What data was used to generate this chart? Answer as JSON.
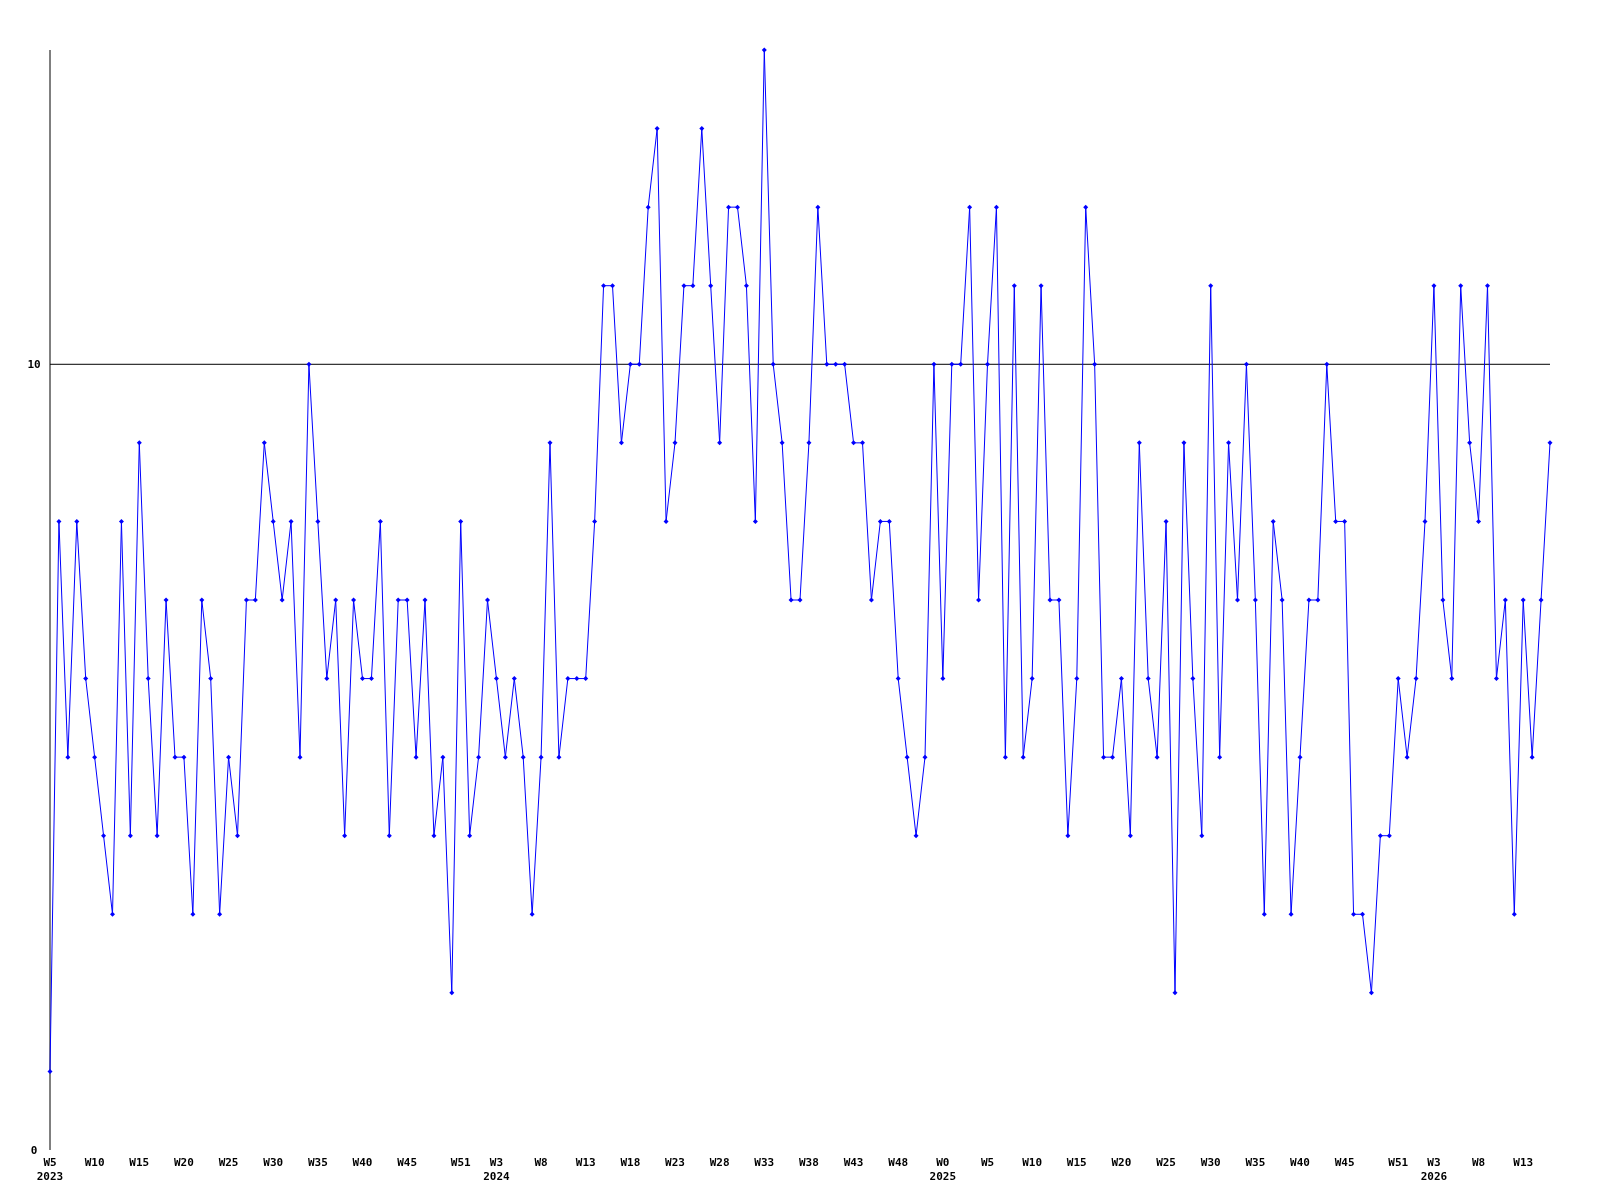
{
  "chart_data": {
    "type": "line",
    "categories": [
      "W5\n2023",
      null,
      null,
      null,
      null,
      "W10",
      null,
      null,
      null,
      null,
      "W15",
      null,
      null,
      null,
      null,
      "W20",
      null,
      null,
      null,
      null,
      "W25",
      null,
      null,
      null,
      null,
      "W30",
      null,
      null,
      null,
      null,
      "W35",
      null,
      null,
      null,
      null,
      "W40",
      null,
      null,
      null,
      null,
      "W45",
      null,
      null,
      null,
      null,
      null,
      "W51",
      null,
      null,
      null,
      "W3\n2024",
      null,
      null,
      null,
      null,
      "W8",
      null,
      null,
      null,
      null,
      "W13",
      null,
      null,
      null,
      null,
      "W18",
      null,
      null,
      null,
      null,
      "W23",
      null,
      null,
      null,
      null,
      "W28",
      null,
      null,
      null,
      null,
      "W33",
      null,
      null,
      null,
      null,
      "W38",
      null,
      null,
      null,
      null,
      "W43",
      null,
      null,
      null,
      null,
      "W48",
      null,
      null,
      null,
      null,
      "W0\n2025",
      null,
      null,
      null,
      null,
      "W5",
      null,
      null,
      null,
      null,
      "W10",
      null,
      null,
      null,
      null,
      "W15",
      null,
      null,
      null,
      null,
      "W20",
      null,
      null,
      null,
      null,
      "W25",
      null,
      null,
      null,
      null,
      "W30",
      null,
      null,
      null,
      null,
      "W35",
      null,
      null,
      null,
      null,
      "W40",
      null,
      null,
      null,
      null,
      "W45",
      null,
      null,
      null,
      null,
      null,
      "W51",
      null,
      null,
      null,
      "W3\n2026",
      null,
      null,
      null,
      null,
      "W8",
      null,
      null,
      null,
      null,
      "W13",
      null,
      null,
      null
    ],
    "series": [
      {
        "color": "#0000ff",
        "values": [
          1,
          8,
          5,
          8,
          6,
          5,
          4,
          3,
          8,
          4,
          9,
          6,
          4,
          7,
          5,
          5,
          3,
          7,
          6,
          3,
          5,
          4,
          7,
          7,
          9,
          8,
          7,
          8,
          5,
          10,
          8,
          6,
          7,
          4,
          7,
          6,
          6,
          8,
          4,
          7,
          7,
          5,
          7,
          4,
          5,
          2,
          8,
          4,
          5,
          7,
          6,
          5,
          6,
          5,
          3,
          5,
          9,
          5,
          6,
          6,
          6,
          8,
          11,
          11,
          9,
          10,
          10,
          12,
          13,
          8,
          9,
          11,
          11,
          13,
          11,
          9,
          12,
          12,
          11,
          8,
          14,
          10,
          9,
          7,
          7,
          9,
          12,
          10,
          10,
          10,
          9,
          9,
          7,
          8,
          8,
          6,
          5,
          4,
          5,
          10,
          6,
          10,
          10,
          12,
          7,
          10,
          12,
          5,
          11,
          5,
          6,
          11,
          7,
          7,
          4,
          6,
          12,
          10,
          5,
          5,
          6,
          4,
          9,
          6,
          5,
          8,
          2,
          9,
          6,
          4,
          11,
          5,
          9,
          7,
          10,
          7,
          3,
          8,
          7,
          3,
          5,
          7,
          7,
          10,
          8,
          8,
          3,
          3,
          2,
          4,
          4,
          6,
          5,
          6,
          8,
          11,
          7,
          6,
          11,
          9,
          8,
          11,
          6,
          7,
          3,
          7,
          5,
          7,
          9
        ]
      }
    ],
    "ylim": [
      0,
      14
    ],
    "yticks": [
      0,
      10
    ],
    "ref_lines": [
      {
        "axis": "y",
        "value": 10,
        "color": "#000000"
      }
    ],
    "marker": "diamond",
    "line_style": "solid"
  }
}
